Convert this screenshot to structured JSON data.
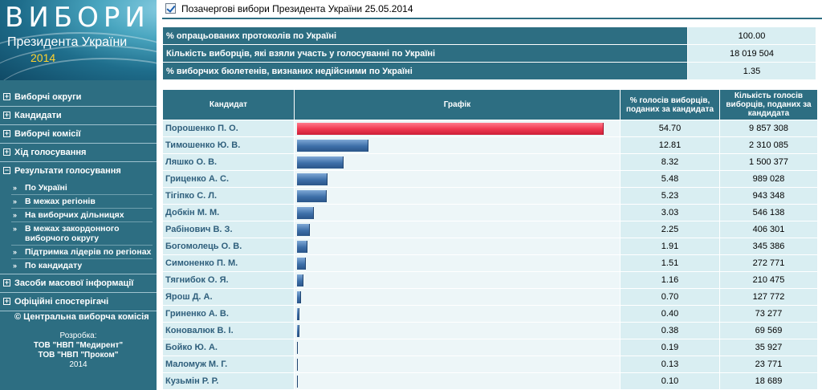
{
  "banner": {
    "title": "ВИБОРИ",
    "subtitle": "Президента України",
    "year": "2014"
  },
  "nav": {
    "items": [
      {
        "label": "Виборчі округи",
        "toggle": "+"
      },
      {
        "label": "Кандидати",
        "toggle": "+"
      },
      {
        "label": "Виборчі комісії",
        "toggle": "+"
      },
      {
        "label": "Хід голосування",
        "toggle": "+"
      },
      {
        "label": "Результати голосування",
        "toggle": "−"
      },
      {
        "label": "Засоби масової інформації",
        "toggle": "+"
      },
      {
        "label": "Офіційні спостерігачі",
        "toggle": "+"
      }
    ],
    "results_sub": [
      {
        "label": "По Україні"
      },
      {
        "label": "В межах регіонів"
      },
      {
        "label": "На виборчих дільницях"
      },
      {
        "label": "В межах закордонного виборчого округу"
      },
      {
        "label": "Підтримка лідерів по регіонах"
      },
      {
        "label": "По кандидату"
      }
    ],
    "sub_arrow": "»",
    "copyright": "© Центральна виборча комісія"
  },
  "developer": {
    "label": "Розробка:",
    "line1": "ТОВ \"НВП \"Медирент\"",
    "line2": "ТОВ \"НВП \"Проком\"",
    "year": "2014"
  },
  "page_title": "Позачергові вибори Президента України 25.05.2014",
  "summary": [
    {
      "label": "% опрацьованих протоколів по Україні",
      "value": "100.00"
    },
    {
      "label": "Кількість виборців, які взяли участь у голосуванні по Україні",
      "value": "18 019 504"
    },
    {
      "label": "% виборчих бюлетенів, визнаних недійсними по Україні",
      "value": "1.35"
    }
  ],
  "results": {
    "headers": {
      "candidate": "Кандидат",
      "graph": "Графік",
      "percent": "% голосів виборців, поданих за кандидата",
      "count": "Кількість голосів виборців, поданих за кандидата"
    },
    "rows": [
      {
        "name": "Порошенко П. О.",
        "percent": "54.70",
        "count": "9 857 308",
        "pct_value": 54.7
      },
      {
        "name": "Тимошенко Ю. В.",
        "percent": "12.81",
        "count": "2 310 085",
        "pct_value": 12.81
      },
      {
        "name": "Ляшко О. В.",
        "percent": "8.32",
        "count": "1 500 377",
        "pct_value": 8.32
      },
      {
        "name": "Гриценко А. С.",
        "percent": "5.48",
        "count": "989 028",
        "pct_value": 5.48
      },
      {
        "name": "Тігіпко С. Л.",
        "percent": "5.23",
        "count": "943 348",
        "pct_value": 5.23
      },
      {
        "name": "Добкін М. М.",
        "percent": "3.03",
        "count": "546 138",
        "pct_value": 3.03
      },
      {
        "name": "Рабінович В. З.",
        "percent": "2.25",
        "count": "406 301",
        "pct_value": 2.25
      },
      {
        "name": "Богомолець О. В.",
        "percent": "1.91",
        "count": "345 386",
        "pct_value": 1.91
      },
      {
        "name": "Симоненко П. М.",
        "percent": "1.51",
        "count": "272 771",
        "pct_value": 1.51
      },
      {
        "name": "Тягнибок О. Я.",
        "percent": "1.16",
        "count": "210 475",
        "pct_value": 1.16
      },
      {
        "name": "Ярош Д. А.",
        "percent": "0.70",
        "count": "127 772",
        "pct_value": 0.7
      },
      {
        "name": "Гриненко А. В.",
        "percent": "0.40",
        "count": "73 277",
        "pct_value": 0.4
      },
      {
        "name": "Коновалюк В. І.",
        "percent": "0.38",
        "count": "69 569",
        "pct_value": 0.38
      },
      {
        "name": "Бойко Ю. А.",
        "percent": "0.19",
        "count": "35 927",
        "pct_value": 0.19
      },
      {
        "name": "Маломуж М. Г.",
        "percent": "0.13",
        "count": "23 771",
        "pct_value": 0.13
      },
      {
        "name": "Кузьмін Р. Р.",
        "percent": "0.10",
        "count": "18 689",
        "pct_value": 0.1
      }
    ]
  },
  "colors": {
    "brand": "#2d6e82",
    "cell_light": "#d9eef2",
    "bar_lead": "#f03a52",
    "bar_other": "#3d6fa8"
  },
  "icons": {
    "title": "checkbox-icon"
  }
}
